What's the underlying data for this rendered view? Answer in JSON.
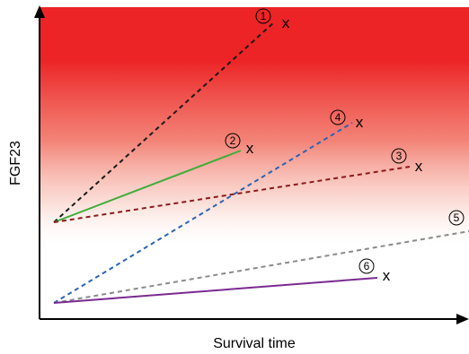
{
  "figure": {
    "ylabel": "FGF23",
    "xlabel": "Survival time",
    "end_marker": "x",
    "colors": {
      "risk_zone": "#ec2426",
      "black": "#1a1a1a",
      "green": "#3fae3a",
      "darkred": "#8b1a1a",
      "blue": "#2a63b5",
      "gray": "#8a8a8a",
      "purple": "#7a2a8f"
    },
    "trajectories": [
      {
        "id": "1",
        "label": "1",
        "color": "#1a1a1a",
        "style": "dashed",
        "has_x": true
      },
      {
        "id": "2",
        "label": "2",
        "color": "#3fae3a",
        "style": "solid",
        "has_x": true
      },
      {
        "id": "3",
        "label": "3",
        "color": "#8b1a1a",
        "style": "dashed",
        "has_x": true
      },
      {
        "id": "4",
        "label": "4",
        "color": "#2a63b5",
        "style": "dashed",
        "has_x": true
      },
      {
        "id": "5",
        "label": "5",
        "color": "#8a8a8a",
        "style": "dashed",
        "has_x": false
      },
      {
        "id": "6",
        "label": "6",
        "color": "#7a2a8f",
        "style": "solid",
        "has_x": true
      }
    ]
  }
}
